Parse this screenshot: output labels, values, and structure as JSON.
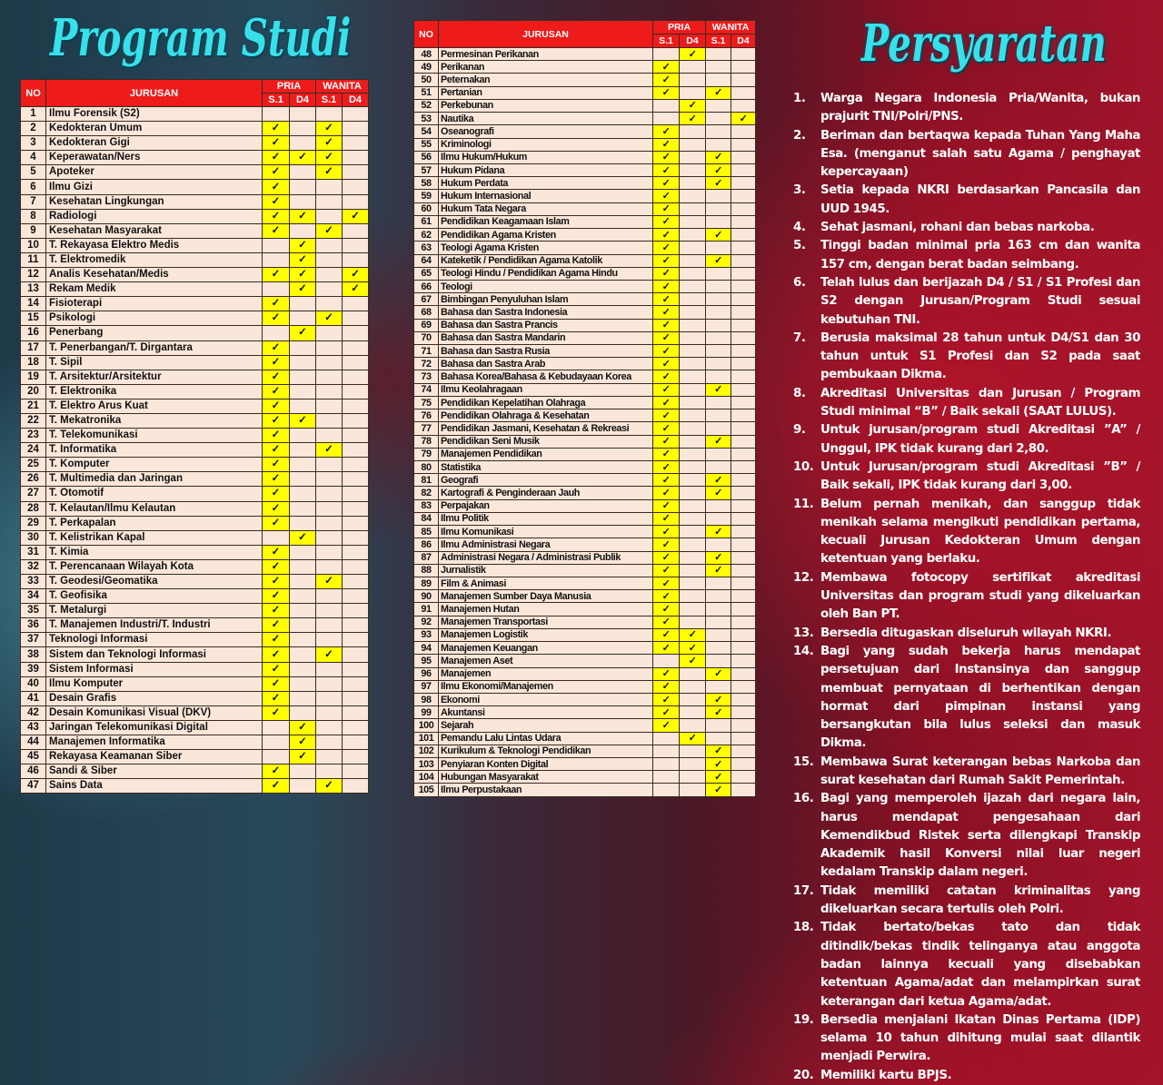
{
  "title_left": "Program Studi",
  "title_right": "Persyaratan",
  "table_headers": {
    "no": "NO",
    "jurusan": "JURUSAN",
    "pria": "PRIA",
    "wanita": "WANITA",
    "s1": "S.1",
    "d4": "D4"
  },
  "check_mark": "✓",
  "check_color": "#ffff00",
  "header_color": "#ee1b1b",
  "table_left": [
    {
      "no": "1",
      "name": "Ilmu Forensik (S2)",
      "checks": "0000"
    },
    {
      "no": "2",
      "name": "Kedokteran Umum",
      "checks": "1010"
    },
    {
      "no": "3",
      "name": "Kedokteran Gigi",
      "checks": "1010"
    },
    {
      "no": "4",
      "name": "Keperawatan/Ners",
      "checks": "1110"
    },
    {
      "no": "5",
      "name": "Apoteker",
      "checks": "1010"
    },
    {
      "no": "6",
      "name": "Ilmu Gizi",
      "checks": "1000"
    },
    {
      "no": "7",
      "name": "Kesehatan Lingkungan",
      "checks": "1000"
    },
    {
      "no": "8",
      "name": "Radiologi",
      "checks": "1101"
    },
    {
      "no": "9",
      "name": "Kesehatan Masyarakat",
      "checks": "1010"
    },
    {
      "no": "10",
      "name": "T. Rekayasa Elektro Medis",
      "checks": "0100"
    },
    {
      "no": "11",
      "name": "T. Elektromedik",
      "checks": "0100"
    },
    {
      "no": "12",
      "name": "Analis Kesehatan/Medis",
      "checks": "1101"
    },
    {
      "no": "13",
      "name": "Rekam Medik",
      "checks": "0101"
    },
    {
      "no": "14",
      "name": "Fisioterapi",
      "checks": "1000"
    },
    {
      "no": "15",
      "name": "Psikologi",
      "checks": "1010"
    },
    {
      "no": "16",
      "name": "Penerbang",
      "checks": "0100"
    },
    {
      "no": "17",
      "name": "T. Penerbangan/T. Dirgantara",
      "checks": "1000"
    },
    {
      "no": "18",
      "name": "T. Sipil",
      "checks": "1000"
    },
    {
      "no": "19",
      "name": "T. Arsitektur/Arsitektur",
      "checks": "1000"
    },
    {
      "no": "20",
      "name": "T. Elektronika",
      "checks": "1000"
    },
    {
      "no": "21",
      "name": "T. Elektro Arus Kuat",
      "checks": "1000"
    },
    {
      "no": "22",
      "name": "T. Mekatronika",
      "checks": "1100"
    },
    {
      "no": "23",
      "name": "T. Telekomunikasi",
      "checks": "1000"
    },
    {
      "no": "24",
      "name": "T. Informatika",
      "checks": "1010"
    },
    {
      "no": "25",
      "name": "T. Komputer",
      "checks": "1000"
    },
    {
      "no": "26",
      "name": "T. Multimedia dan Jaringan",
      "checks": "1000"
    },
    {
      "no": "27",
      "name": "T. Otomotif",
      "checks": "1000"
    },
    {
      "no": "28",
      "name": "T. Kelautan/Ilmu Kelautan",
      "checks": "1000"
    },
    {
      "no": "29",
      "name": "T. Perkapalan",
      "checks": "1000"
    },
    {
      "no": "30",
      "name": "T. Kelistrikan Kapal",
      "checks": "0100"
    },
    {
      "no": "31",
      "name": "T. Kimia",
      "checks": "1000"
    },
    {
      "no": "32",
      "name": "T. Perencanaan Wilayah Kota",
      "checks": "1000"
    },
    {
      "no": "33",
      "name": "T. Geodesi/Geomatika",
      "checks": "1010"
    },
    {
      "no": "34",
      "name": "T. Geofisika",
      "checks": "1000"
    },
    {
      "no": "35",
      "name": "T. Metalurgi",
      "checks": "1000"
    },
    {
      "no": "36",
      "name": "T. Manajemen Industri/T. Industri",
      "checks": "1000"
    },
    {
      "no": "37",
      "name": "Teknologi Informasi",
      "checks": "1000"
    },
    {
      "no": "38",
      "name": "Sistem dan Teknologi Informasi",
      "checks": "1010"
    },
    {
      "no": "39",
      "name": "Sistem Informasi",
      "checks": "1000"
    },
    {
      "no": "40",
      "name": "Ilmu Komputer",
      "checks": "1000"
    },
    {
      "no": "41",
      "name": "Desain Grafis",
      "checks": "1000"
    },
    {
      "no": "42",
      "name": "Desain Komunikasi Visual (DKV)",
      "checks": "1000"
    },
    {
      "no": "43",
      "name": "Jaringan Telekomunikasi Digital",
      "checks": "0100"
    },
    {
      "no": "44",
      "name": "Manajemen Informatika",
      "checks": "0100"
    },
    {
      "no": "45",
      "name": "Rekayasa Keamanan Siber",
      "checks": "0100"
    },
    {
      "no": "46",
      "name": "Sandi & Siber",
      "checks": "1000"
    },
    {
      "no": "47",
      "name": "Sains Data",
      "checks": "1010"
    }
  ],
  "table_mid": [
    {
      "no": "48",
      "name": "Permesinan Perikanan",
      "checks": "0100"
    },
    {
      "no": "49",
      "name": "Perikanan",
      "checks": "1000"
    },
    {
      "no": "50",
      "name": "Peternakan",
      "checks": "1000"
    },
    {
      "no": "51",
      "name": "Pertanian",
      "checks": "1010"
    },
    {
      "no": "52",
      "name": "Perkebunan",
      "checks": "0100"
    },
    {
      "no": "53",
      "name": "Nautika",
      "checks": "0101"
    },
    {
      "no": "54",
      "name": "Oseanografi",
      "checks": "1000"
    },
    {
      "no": "55",
      "name": "Kriminologi",
      "checks": "1000"
    },
    {
      "no": "56",
      "name": "Ilmu Hukum/Hukum",
      "checks": "1010"
    },
    {
      "no": "57",
      "name": "Hukum Pidana",
      "checks": "1010"
    },
    {
      "no": "58",
      "name": "Hukum Perdata",
      "checks": "1010"
    },
    {
      "no": "59",
      "name": "Hukum Internasional",
      "checks": "1000"
    },
    {
      "no": "60",
      "name": "Hukum Tata Negara",
      "checks": "1000"
    },
    {
      "no": "61",
      "name": "Pendidikan Keagamaan Islam",
      "checks": "1000"
    },
    {
      "no": "62",
      "name": "Pendidikan Agama Kristen",
      "checks": "1010"
    },
    {
      "no": "63",
      "name": "Teologi Agama Kristen",
      "checks": "1000"
    },
    {
      "no": "64",
      "name": "Kateketik / Pendidikan Agama Katolik",
      "checks": "1010"
    },
    {
      "no": "65",
      "name": "Teologi Hindu / Pendidikan Agama Hindu",
      "checks": "1000"
    },
    {
      "no": "66",
      "name": "Teologi",
      "checks": "1000"
    },
    {
      "no": "67",
      "name": "Bimbingan Penyuluhan Islam",
      "checks": "1000"
    },
    {
      "no": "68",
      "name": "Bahasa dan Sastra Indonesia",
      "checks": "1000"
    },
    {
      "no": "69",
      "name": "Bahasa dan Sastra Prancis",
      "checks": "1000"
    },
    {
      "no": "70",
      "name": "Bahasa dan Sastra Mandarin",
      "checks": "1000"
    },
    {
      "no": "71",
      "name": "Bahasa dan Sastra Rusia",
      "checks": "1000"
    },
    {
      "no": "72",
      "name": "Bahasa dan Sastra Arab",
      "checks": "1000"
    },
    {
      "no": "73",
      "name": "Bahasa Korea/Bahasa & Kebudayaan Korea",
      "checks": "1000"
    },
    {
      "no": "74",
      "name": "Ilmu Keolahragaan",
      "checks": "1010"
    },
    {
      "no": "75",
      "name": "Pendidikan Kepelatihan Olahraga",
      "checks": "1000"
    },
    {
      "no": "76",
      "name": "Pendidikan Olahraga & Kesehatan",
      "checks": "1000"
    },
    {
      "no": "77",
      "name": "Pendidikan Jasmani, Kesehatan & Rekreasi",
      "checks": "1000"
    },
    {
      "no": "78",
      "name": "Pendidikan Seni Musik",
      "checks": "1010"
    },
    {
      "no": "79",
      "name": "Manajemen Pendidikan",
      "checks": "1000"
    },
    {
      "no": "80",
      "name": "Statistika",
      "checks": "1000"
    },
    {
      "no": "81",
      "name": "Geografi",
      "checks": "1010"
    },
    {
      "no": "82",
      "name": "Kartografi & Penginderaan Jauh",
      "checks": "1010"
    },
    {
      "no": "83",
      "name": "Perpajakan",
      "checks": "1000"
    },
    {
      "no": "84",
      "name": "Ilmu Politik",
      "checks": "1000"
    },
    {
      "no": "85",
      "name": "Ilmu Komunikasi",
      "checks": "1010"
    },
    {
      "no": "86",
      "name": "Ilmu Administrasi Negara",
      "checks": "1000"
    },
    {
      "no": "87",
      "name": "Administrasi Negara / Administrasi Publik",
      "checks": "1010"
    },
    {
      "no": "88",
      "name": "Jurnalistik",
      "checks": "1010"
    },
    {
      "no": "89",
      "name": "Film & Animasi",
      "checks": "1000"
    },
    {
      "no": "90",
      "name": "Manajemen Sumber Daya Manusia",
      "checks": "1000"
    },
    {
      "no": "91",
      "name": "Manajemen Hutan",
      "checks": "1000"
    },
    {
      "no": "92",
      "name": "Manajemen Transportasi",
      "checks": "1000"
    },
    {
      "no": "93",
      "name": "Manajemen Logistik",
      "checks": "1100"
    },
    {
      "no": "94",
      "name": "Manajemen Keuangan",
      "checks": "1100"
    },
    {
      "no": "95",
      "name": "Manajemen Aset",
      "checks": "0100"
    },
    {
      "no": "96",
      "name": "Manajemen",
      "checks": "1010"
    },
    {
      "no": "97",
      "name": "Ilmu Ekonomi/Manajemen",
      "checks": "1000"
    },
    {
      "no": "98",
      "name": "Ekonomi",
      "checks": "1010"
    },
    {
      "no": "99",
      "name": "Akuntansi",
      "checks": "1010"
    },
    {
      "no": "100",
      "name": "Sejarah",
      "checks": "1000"
    },
    {
      "no": "101",
      "name": "Pemandu Lalu Lintas Udara",
      "checks": "0100"
    },
    {
      "no": "102",
      "name": "Kurikulum & Teknologi Pendidikan",
      "checks": "0010"
    },
    {
      "no": "103",
      "name": "Penyiaran Konten Digital",
      "checks": "0010"
    },
    {
      "no": "104",
      "name": "Hubungan Masyarakat",
      "checks": "0010"
    },
    {
      "no": "105",
      "name": "Ilmu Perpustakaan",
      "checks": "0010"
    }
  ],
  "requirements": [
    {
      "n": "1.",
      "text": "Warga Negara Indonesia Pria/Wanita, bukan prajurit TNI/Polri/PNS."
    },
    {
      "n": "2.",
      "text": "Beriman dan bertaqwa kepada Tuhan Yang Maha Esa. (menganut salah satu Agama / penghayat kepercayaan)"
    },
    {
      "n": "3.",
      "text": "Setia kepada NKRI berdasarkan Pancasila dan UUD 1945."
    },
    {
      "n": "4.",
      "text": "Sehat jasmani, rohani dan bebas narkoba."
    },
    {
      "n": "5.",
      "text": "Tinggi badan minimal pria 163 cm dan wanita 157 cm, dengan berat badan seimbang."
    },
    {
      "n": "6.",
      "text": "Telah lulus dan berijazah D4 / S1 / S1 Profesi dan S2 dengan Jurusan/Program Studi sesuai kebutuhan TNI."
    },
    {
      "n": "7.",
      "text": "Berusia maksimal 28 tahun untuk D4/S1 dan 30 tahun untuk S1 Profesi dan S2 pada saat pembukaan Dikma."
    },
    {
      "n": "8.",
      "text": "Akreditasi Universitas dan Jurusan / Program Studi minimal “B” / Baik sekali (SAAT LULUS)."
    },
    {
      "n": "9.",
      "text": "Untuk jurusan/program studi Akreditasi ”A” / Unggul, IPK tidak kurang dari 2,80."
    },
    {
      "n": "10.",
      "text": "Untuk Jurusan/program studi Akreditasi ”B” / Baik sekali, IPK tidak kurang dari 3,00."
    },
    {
      "n": "11.",
      "text": "Belum pernah menikah, dan sanggup tidak menikah selama mengikuti pendidikan pertama, kecuali Jurusan Kedokteran Umum dengan ketentuan yang berlaku."
    },
    {
      "n": "12.",
      "text": "Membawa fotocopy sertifikat akreditasi Universitas dan program studi yang dikeluarkan oleh Ban PT."
    },
    {
      "n": "13.",
      "text": "Bersedia ditugaskan diseluruh wilayah NKRI."
    },
    {
      "n": "14.",
      "text": "Bagi yang sudah bekerja harus mendapat persetujuan dari Instansinya dan sanggup membuat pernyataan di berhentikan dengan hormat dari pimpinan instansi yang bersangkutan bila lulus seleksi dan masuk Dikma."
    },
    {
      "n": "15.",
      "text": "Membawa Surat keterangan bebas Narkoba dan surat kesehatan dari Rumah Sakit Pemerintah."
    },
    {
      "n": "16.",
      "text": "Bagi yang memperoleh ijazah dari negara lain, harus mendapat pengesahaan dari Kemendikbud Ristek serta dilengkapi Transkip Akademik hasil Konversi nilai luar negeri kedalam Transkip dalam negeri."
    },
    {
      "n": "17.",
      "text": "Tidak memiliki catatan kriminalitas yang dikeluarkan secara tertulis oleh Polri."
    },
    {
      "n": "18.",
      "text": "Tidak bertato/bekas tato dan tidak ditindik/bekas tindik telinganya atau anggota badan lainnya kecuali yang disebabkan ketentuan Agama/adat dan melampirkan surat keterangan dari ketua Agama/adat."
    },
    {
      "n": "19.",
      "text": "Bersedia menjalani Ikatan Dinas Pertama (IDP) selama 10 tahun dihitung mulai saat dilantik menjadi Perwira."
    },
    {
      "n": "20.",
      "text": "Memiliki kartu BPJS."
    }
  ]
}
